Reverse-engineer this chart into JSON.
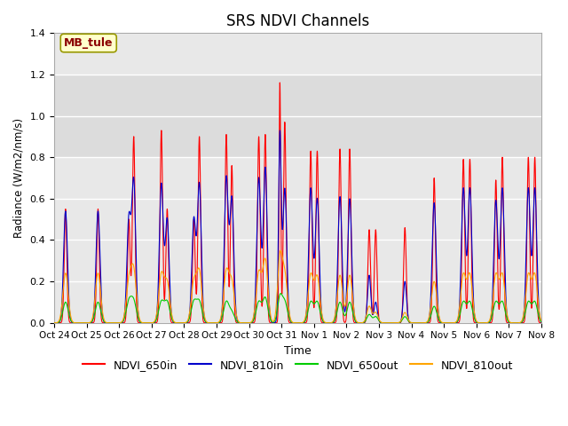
{
  "title": "SRS NDVI Channels",
  "xlabel": "Time",
  "ylabel": "Radiance (W/m2/nm/s)",
  "annotation_text": "MB_tule",
  "annotation_color": "#8B0000",
  "annotation_bg": "#FFFFCC",
  "ylim": [
    0,
    1.4
  ],
  "legend_labels": [
    "NDVI_650in",
    "NDVI_810in",
    "NDVI_650out",
    "NDVI_810out"
  ],
  "legend_colors": [
    "#FF0000",
    "#0000CC",
    "#00CC00",
    "#FFA500"
  ],
  "line_colors": {
    "NDVI_650in": "#FF0000",
    "NDVI_810in": "#0000CC",
    "NDVI_650out": "#00CC00",
    "NDVI_810out": "#FFA500"
  },
  "background_band": [
    0.8,
    1.2
  ],
  "background_color": "#DCDCDC",
  "tick_dates": [
    "Oct 24",
    "Oct 25",
    "Oct 26",
    "Oct 27",
    "Oct 28",
    "Oct 29",
    "Oct 30",
    "Oct 31",
    "Nov 1",
    "Nov 2",
    "Nov 3",
    "Nov 4",
    "Nov 5",
    "Nov 6",
    "Nov 7",
    "Nov 8"
  ],
  "ax_facecolor": "#E8E8E8"
}
